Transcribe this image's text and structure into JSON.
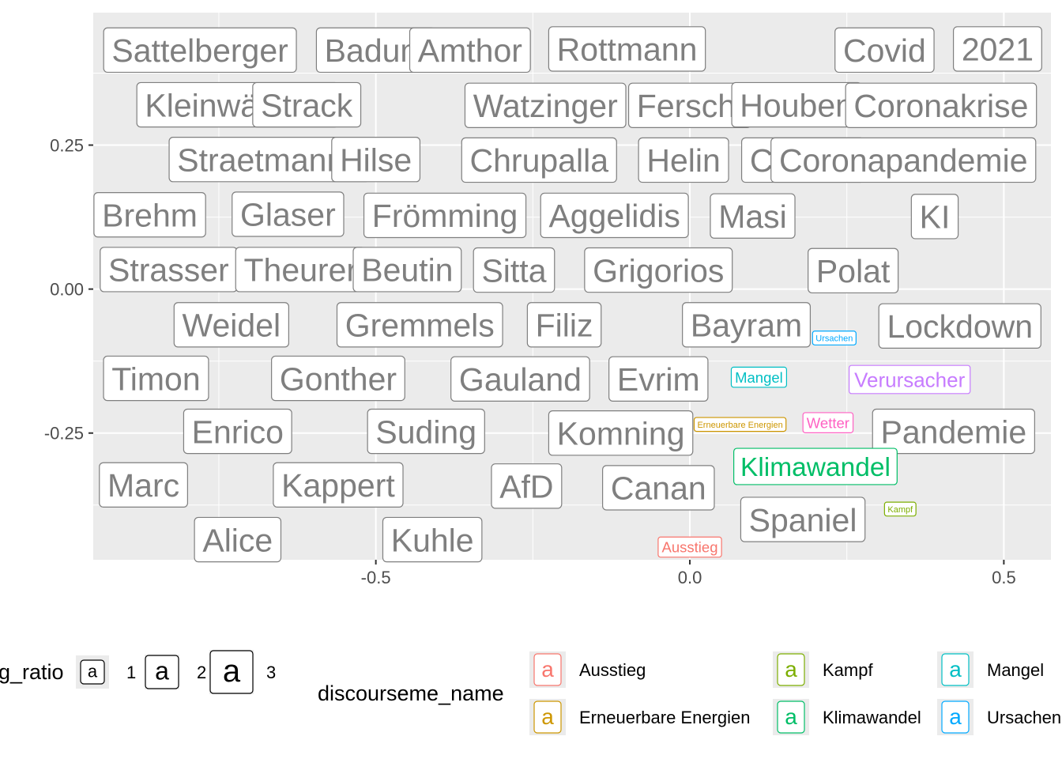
{
  "chart_data": {
    "type": "scatter",
    "title": "",
    "xlabel": "",
    "ylabel": "",
    "xlim": [
      -0.95,
      0.575
    ],
    "ylim": [
      -0.47,
      0.48
    ],
    "x_ticks": [
      {
        "value": -0.5,
        "label": "-0.5"
      },
      {
        "value": 0.0,
        "label": "0.0"
      },
      {
        "value": 0.5,
        "label": "0.5"
      }
    ],
    "y_ticks": [
      {
        "value": 0.25,
        "label": "0.25"
      },
      {
        "value": 0.0,
        "label": "0.00"
      },
      {
        "value": -0.25,
        "label": "-0.25"
      }
    ],
    "grid": true,
    "background": "#ebebeb",
    "size_legend": {
      "title": "log_ratio",
      "shown_title": "g_ratio",
      "entries": [
        {
          "label": "1",
          "size": 1
        },
        {
          "label": "2",
          "size": 2
        },
        {
          "label": "3",
          "size": 3
        }
      ]
    },
    "color_legend": {
      "title": "discourseme_name",
      "entries": [
        {
          "name": "Ausstieg",
          "color": "#F8766D"
        },
        {
          "name": "Erneuerbare Energien",
          "color": "#CD9600"
        },
        {
          "name": "Kampf",
          "color": "#7CAE00"
        },
        {
          "name": "Klimawandel",
          "color": "#00BE67"
        },
        {
          "name": "Mangel",
          "color": "#00BFC4"
        },
        {
          "name": "Ursachen",
          "color": "#00A9FF"
        }
      ]
    },
    "default_color": "#7f7f7f",
    "points": [
      {
        "label": "Sattelberger",
        "x": -0.78,
        "y": 0.415,
        "size": 3
      },
      {
        "label": "Badum",
        "x": -0.5,
        "y": 0.415,
        "size": 3
      },
      {
        "label": "Amthor",
        "x": -0.35,
        "y": 0.415,
        "size": 3
      },
      {
        "label": "Rottmann",
        "x": -0.1,
        "y": 0.417,
        "size": 3
      },
      {
        "label": "Covid",
        "x": 0.31,
        "y": 0.415,
        "size": 3
      },
      {
        "label": "2021",
        "x": 0.49,
        "y": 0.417,
        "size": 3
      },
      {
        "label": "Kleinwächter",
        "x": -0.72,
        "y": 0.32,
        "size": 3
      },
      {
        "label": "Strack",
        "x": -0.61,
        "y": 0.32,
        "size": 3
      },
      {
        "label": "Watzinger",
        "x": -0.23,
        "y": 0.319,
        "size": 3
      },
      {
        "label": "Ferschl",
        "x": 0.0,
        "y": 0.319,
        "size": 3
      },
      {
        "label": "Houben",
        "x": 0.17,
        "y": 0.32,
        "size": 3
      },
      {
        "label": "Coronakrise",
        "x": 0.4,
        "y": 0.319,
        "size": 3
      },
      {
        "label": "Straetmanns",
        "x": -0.67,
        "y": 0.225,
        "size": 3
      },
      {
        "label": "Hilse",
        "x": -0.5,
        "y": 0.225,
        "size": 3
      },
      {
        "label": "Chrupalla",
        "x": -0.24,
        "y": 0.224,
        "size": 3
      },
      {
        "label": "Helin",
        "x": -0.01,
        "y": 0.224,
        "size": 3
      },
      {
        "label": "Corona",
        "x": 0.18,
        "y": 0.224,
        "size": 3
      },
      {
        "label": "Coronapandemie",
        "x": 0.34,
        "y": 0.224,
        "size": 3
      },
      {
        "label": "Brehm",
        "x": -0.86,
        "y": 0.129,
        "size": 3
      },
      {
        "label": "Glaser",
        "x": -0.64,
        "y": 0.13,
        "size": 3
      },
      {
        "label": "Frömming",
        "x": -0.39,
        "y": 0.128,
        "size": 3
      },
      {
        "label": "Aggelidis",
        "x": -0.12,
        "y": 0.128,
        "size": 3
      },
      {
        "label": "Masi",
        "x": 0.1,
        "y": 0.127,
        "size": 3
      },
      {
        "label": "KI",
        "x": 0.39,
        "y": 0.126,
        "size": 3
      },
      {
        "label": "Strasser",
        "x": -0.83,
        "y": 0.034,
        "size": 3
      },
      {
        "label": "Theurer",
        "x": -0.62,
        "y": 0.034,
        "size": 3
      },
      {
        "label": "Beutin",
        "x": -0.45,
        "y": 0.034,
        "size": 3
      },
      {
        "label": "Sitta",
        "x": -0.28,
        "y": 0.033,
        "size": 3
      },
      {
        "label": "Grigorios",
        "x": -0.05,
        "y": 0.033,
        "size": 3
      },
      {
        "label": "Polat",
        "x": 0.26,
        "y": 0.032,
        "size": 3
      },
      {
        "label": "Weidel",
        "x": -0.73,
        "y": -0.062,
        "size": 3
      },
      {
        "label": "Gremmels",
        "x": -0.43,
        "y": -0.062,
        "size": 3
      },
      {
        "label": "Filiz",
        "x": -0.2,
        "y": -0.062,
        "size": 3
      },
      {
        "label": "Bayram",
        "x": 0.09,
        "y": -0.062,
        "size": 3
      },
      {
        "label": "Ursachen",
        "x": 0.23,
        "y": -0.085,
        "size": 1
      },
      {
        "label": "Lockdown",
        "x": 0.43,
        "y": -0.064,
        "size": 3
      },
      {
        "label": "Timon",
        "x": -0.85,
        "y": -0.155,
        "size": 3
      },
      {
        "label": "Gonther",
        "x": -0.56,
        "y": -0.155,
        "size": 3
      },
      {
        "label": "Gauland",
        "x": -0.27,
        "y": -0.156,
        "size": 3
      },
      {
        "label": "Evrim",
        "x": -0.05,
        "y": -0.156,
        "size": 3
      },
      {
        "label": "Mangel",
        "x": 0.11,
        "y": -0.153,
        "size": 1.5
      },
      {
        "label": "Verursacher",
        "x": 0.35,
        "y": -0.157,
        "size": 2
      },
      {
        "label": "Enrico",
        "x": -0.72,
        "y": -0.247,
        "size": 3
      },
      {
        "label": "Suding",
        "x": -0.42,
        "y": -0.247,
        "size": 3
      },
      {
        "label": "Komning",
        "x": -0.11,
        "y": -0.25,
        "size": 3
      },
      {
        "label": "Erneuerbare Energien",
        "x": 0.08,
        "y": -0.235,
        "size": 1
      },
      {
        "label": "Wetter",
        "x": 0.22,
        "y": -0.232,
        "size": 1.5
      },
      {
        "label": "Pandemie",
        "x": 0.42,
        "y": -0.247,
        "size": 3
      },
      {
        "label": "Klimawandel",
        "x": 0.2,
        "y": -0.308,
        "size": 2.5
      },
      {
        "label": "Marc",
        "x": -0.87,
        "y": -0.34,
        "size": 3
      },
      {
        "label": "Kappert",
        "x": -0.56,
        "y": -0.34,
        "size": 3
      },
      {
        "label": "AfD",
        "x": -0.26,
        "y": -0.342,
        "size": 3
      },
      {
        "label": "Canan",
        "x": -0.05,
        "y": -0.345,
        "size": 3
      },
      {
        "label": "Spaniel",
        "x": 0.18,
        "y": -0.4,
        "size": 3
      },
      {
        "label": "Kampf",
        "x": 0.335,
        "y": -0.382,
        "size": 1
      },
      {
        "label": "Alice",
        "x": -0.72,
        "y": -0.435,
        "size": 3
      },
      {
        "label": "Kuhle",
        "x": -0.41,
        "y": -0.435,
        "size": 3
      },
      {
        "label": "Ausstieg",
        "x": 0.0,
        "y": -0.448,
        "size": 1.5
      }
    ],
    "point_colors": {
      "Ursachen": "#00A9FF",
      "Mangel": "#00BFC4",
      "Verursacher": "#C77CFF",
      "Erneuerbare Energien": "#CD9600",
      "Wetter": "#FF61C3",
      "Klimawandel": "#00BE67",
      "Kampf": "#7CAE00",
      "Ausstieg": "#F8766D"
    }
  }
}
